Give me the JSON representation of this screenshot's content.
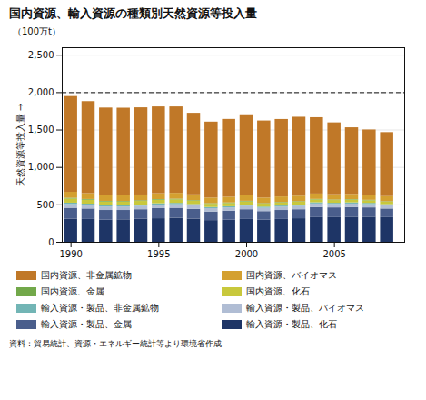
{
  "chart_data": {
    "type": "bar",
    "stacked": true,
    "title": "国内資源、輸入資源の種類別天然資源等投入量",
    "ylabel": "天然資源等投入量",
    "annotations": [
      "（100万t）",
      "資料：貿易統計、資源・エネルギー統計等より環境省作成"
    ],
    "x": [
      1990,
      1991,
      1992,
      1993,
      1994,
      1995,
      1996,
      1997,
      1998,
      1999,
      2000,
      2001,
      2002,
      2003,
      2004,
      2005,
      2006,
      2007,
      2008
    ],
    "series": [
      {
        "name": "輸入資源・製品、化石",
        "color": "#1e3566",
        "values": [
          310,
          305,
          295,
          300,
          310,
          315,
          320,
          310,
          290,
          295,
          305,
          295,
          305,
          315,
          330,
          330,
          335,
          335,
          330
        ]
      },
      {
        "name": "輸入資源・製品、金属",
        "color": "#4a5e8c",
        "values": [
          145,
          140,
          130,
          125,
          125,
          135,
          135,
          130,
          115,
          120,
          130,
          115,
          120,
          120,
          135,
          130,
          130,
          125,
          115
        ]
      },
      {
        "name": "輸入資源・製品、バイオマス",
        "color": "#b0bdd4",
        "values": [
          50,
          48,
          47,
          47,
          47,
          48,
          48,
          48,
          45,
          45,
          47,
          45,
          45,
          46,
          47,
          46,
          46,
          44,
          43
        ]
      },
      {
        "name": "輸入資源・製品、非金属鉱物",
        "color": "#72b5b5",
        "values": [
          18,
          17,
          16,
          16,
          16,
          17,
          17,
          16,
          15,
          15,
          16,
          15,
          15,
          15,
          16,
          15,
          16,
          16,
          15
        ]
      },
      {
        "name": "国内資源、化石",
        "color": "#c8c83c",
        "values": [
          55,
          52,
          50,
          48,
          48,
          47,
          47,
          45,
          43,
          43,
          42,
          40,
          40,
          40,
          38,
          37,
          36,
          35,
          33
        ]
      },
      {
        "name": "国内資源、金属",
        "color": "#72a84a",
        "values": [
          10,
          10,
          9,
          9,
          9,
          9,
          9,
          8,
          8,
          8,
          8,
          7,
          7,
          7,
          7,
          7,
          7,
          6,
          6
        ]
      },
      {
        "name": "国内資源、バイオマス",
        "color": "#d4a030",
        "values": [
          80,
          78,
          77,
          77,
          77,
          78,
          78,
          77,
          75,
          76,
          76,
          74,
          74,
          73,
          72,
          71,
          70,
          70,
          69
        ]
      },
      {
        "name": "国内資源、非金属鉱物",
        "color": "#c07828",
        "values": [
          1280,
          1230,
          1170,
          1170,
          1165,
          1160,
          1155,
          1090,
          1015,
          1040,
          1080,
          1030,
          1035,
          1055,
          1020,
          960,
          890,
          870,
          855
        ]
      }
    ],
    "xlim": [
      1989.5,
      2009.0
    ],
    "xticks": [
      1990,
      1995,
      2000,
      2005
    ],
    "ylim": [
      0,
      2600
    ],
    "yticks": [
      0,
      500,
      {
        "value": 1000,
        "label": "1,000"
      },
      {
        "value": 1500,
        "label": "1,500"
      },
      {
        "value": 2000,
        "label": "2,000"
      },
      {
        "value": 2500,
        "label": "2,500"
      }
    ],
    "grid": true,
    "legend": "bottom",
    "hline": 2000
  }
}
